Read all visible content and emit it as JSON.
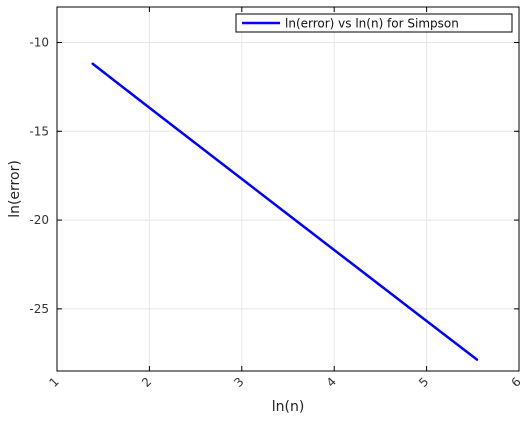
{
  "chart_data": {
    "type": "line",
    "title": "",
    "xlabel": "ln(n)",
    "ylabel": "ln(error)",
    "xlim": [
      1,
      6
    ],
    "ylim": [
      -28.5,
      -8
    ],
    "x_ticks": [
      "1",
      "2",
      "3",
      "4",
      "5",
      "6"
    ],
    "y_ticks": [
      "-10",
      "-15",
      "-20",
      "-25"
    ],
    "grid": true,
    "legend_position": "top-right",
    "series": [
      {
        "name": "ln(error) vs ln(n) for Simpson",
        "color": "#0000ff",
        "x": [
          1.386,
          2.079,
          2.773,
          3.466,
          4.159,
          4.852,
          5.545
        ],
        "y": [
          -11.2,
          -13.99,
          -16.77,
          -19.55,
          -22.32,
          -25.09,
          -27.86
        ]
      }
    ]
  }
}
